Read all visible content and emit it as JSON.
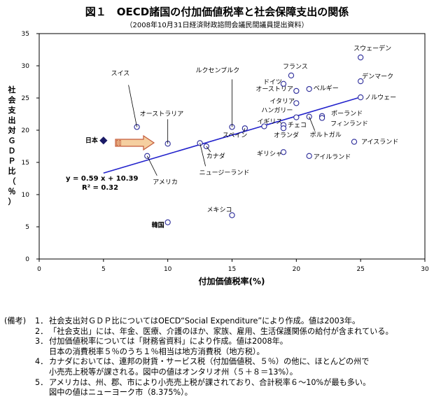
{
  "chart_data": {
    "type": "scatter",
    "title": "図１　OECD諸国の付加価値税率と社会保障支出の関係",
    "subtitle": "（2008年10月31日経済財政諮問会議民間議員提出資料）",
    "xlabel": "付加価値税率(%)",
    "ylabel": "社会支出対ＧＤＰ比（％）",
    "xlim": [
      0,
      30
    ],
    "ylim": [
      0,
      35
    ],
    "x_ticks": [
      0,
      5,
      10,
      15,
      20,
      25,
      30
    ],
    "y_ticks": [
      0,
      5,
      10,
      15,
      20,
      25,
      30,
      35
    ],
    "grid": false,
    "points": [
      {
        "label": "スウェーデン",
        "x": 25,
        "y": 31.3
      },
      {
        "label": "フランス",
        "x": 19.6,
        "y": 28.5
      },
      {
        "label": "デンマーク",
        "x": 25,
        "y": 27.6
      },
      {
        "label": "ドイツ",
        "x": 19,
        "y": 27.2
      },
      {
        "label": "オーストリア",
        "x": 20,
        "y": 26.1
      },
      {
        "label": "ベルギー",
        "x": 21,
        "y": 26.4
      },
      {
        "label": "ノルウェー",
        "x": 25,
        "y": 25.1
      },
      {
        "label": "イタリア",
        "x": 20,
        "y": 24.2
      },
      {
        "label": "ポーランド",
        "x": 22,
        "y": 22.2
      },
      {
        "label": "フィンランド",
        "x": 22,
        "y": 21.9
      },
      {
        "label": "ハンガリー",
        "x": 20,
        "y": 22.0
      },
      {
        "label": "チェコ",
        "x": 19,
        "y": 20.8
      },
      {
        "label": "イギリス",
        "x": 17.5,
        "y": 20.6
      },
      {
        "label": "スペイン",
        "x": 16,
        "y": 20.3
      },
      {
        "label": "オランダ",
        "x": 19,
        "y": 20.3
      },
      {
        "label": "ルクセンブルク",
        "x": 15,
        "y": 20.5
      },
      {
        "label": "スイス",
        "x": 7.6,
        "y": 20.5
      },
      {
        "label": "オーストラリア",
        "x": 10,
        "y": 17.9
      },
      {
        "label": "ポルトガル",
        "x": 21,
        "y": 22.1
      },
      {
        "label": "アイスランド",
        "x": 24.5,
        "y": 18.2
      },
      {
        "label": "ギリシャ",
        "x": 19,
        "y": 16.6
      },
      {
        "label": "アイルランド",
        "x": 21,
        "y": 16.0
      },
      {
        "label": "カナダ",
        "x": 13,
        "y": 17.5
      },
      {
        "label": "ニュージーランド",
        "x": 12.5,
        "y": 18.0
      },
      {
        "label": "アメリカ",
        "x": 8.4,
        "y": 16.0
      },
      {
        "label": "メキシコ",
        "x": 15,
        "y": 6.8
      },
      {
        "label": "韓国",
        "x": 10,
        "y": 5.7
      },
      {
        "label": "日本",
        "x": 5,
        "y": 18.4
      }
    ],
    "trendline": {
      "slope": 0.59,
      "intercept": 10.39,
      "x_range": [
        5,
        25
      ],
      "equation": "y = 0.59 x + 10.39",
      "r2": "R² = 0.32"
    }
  },
  "notes": {
    "prefix": "(備考)",
    "items": [
      {
        "num": "1．",
        "lines": [
          "社会支出対ＧＤＰ比についてはOECD“Social Expenditure”により作成。値は2003年。"
        ]
      },
      {
        "num": "2．",
        "lines": [
          "「社会支出」には、年金、医療、介護のほか、家族、雇用、生活保護関係の給付が含まれている。"
        ]
      },
      {
        "num": "3．",
        "lines": [
          "付加価値税率については「財務省資料」により作成。値は2008年。",
          "日本の消費税率５％のうち１％相当は地方消費税（地方税）。"
        ]
      },
      {
        "num": "4．",
        "lines": [
          "カナダにおいては、連邦の財貨・サービス税（付加価値税、５％）の他に、ほとんどの州で",
          "小売売上税等が課される。図中の値はオンタリオ州（５＋８＝13%）。"
        ]
      },
      {
        "num": "5．",
        "lines": [
          "アメリカは、州、郡、市により小売売上税が課されており、合計税率６～10%が最も多い。",
          "図中の値はニューヨーク市（8.375%）。"
        ]
      }
    ]
  }
}
